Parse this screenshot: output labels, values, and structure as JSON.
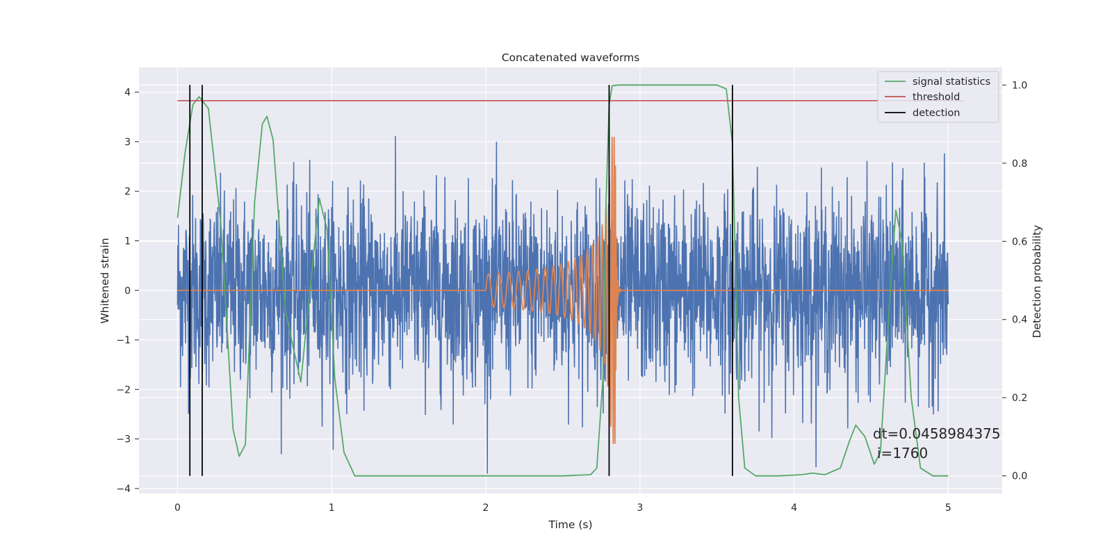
{
  "chart_data": {
    "type": "line",
    "title": "Concatenated waveforms",
    "xlabel": "Time (s)",
    "ylabel": "Whitened strain",
    "y2label": "Detection probability",
    "xlim": [
      -0.25,
      5.35
    ],
    "ylim": [
      -4.1,
      4.5
    ],
    "y2lim": [
      -0.045,
      1.045
    ],
    "xticks": [
      "0",
      "1",
      "2",
      "3",
      "4",
      "5"
    ],
    "xtick_values": [
      0,
      1,
      2,
      3,
      4,
      5
    ],
    "yticks": [
      "4",
      "3",
      "2",
      "1",
      "0",
      "−1",
      "−2",
      "−3",
      "−4"
    ],
    "ytick_values": [
      4,
      3,
      2,
      1,
      0,
      -1,
      -2,
      -3,
      -4
    ],
    "y2ticks": [
      "1.0",
      "0.8",
      "0.6",
      "0.4",
      "0.2",
      "0.0"
    ],
    "y2tick_values": [
      1.0,
      0.8,
      0.6,
      0.4,
      0.2,
      0.0
    ],
    "grid": true,
    "legend_position": "top-right",
    "colors": {
      "noise": "#4c72b0",
      "signal": "#dd8452",
      "statistics": "#55a868",
      "threshold": "#c44e52",
      "detection": "#000000",
      "background": "#eaeaf2"
    },
    "legend": [
      "signal statistics",
      "threshold",
      "detection"
    ],
    "series": [
      {
        "role": "noise",
        "x_range": [
          0,
          5
        ],
        "amplitude_range": [
          -3.7,
          3.2
        ]
      },
      {
        "role": "signal",
        "x_range": [
          2.0,
          2.9
        ],
        "peak_time": 2.84
      },
      {
        "name": "signal statistics",
        "axis": "right",
        "x": [
          0,
          0.05,
          0.1,
          0.14,
          0.2,
          0.28,
          0.36,
          0.4,
          0.44,
          0.5,
          0.55,
          0.58,
          0.62,
          0.7,
          0.8,
          0.86,
          0.92,
          0.97,
          1.02,
          1.08,
          1.15,
          1.3,
          2.0,
          2.5,
          2.68,
          2.72,
          2.76,
          2.78,
          2.8,
          2.82,
          2.86,
          3.0,
          3.5,
          3.56,
          3.6,
          3.64,
          3.68,
          3.75,
          3.9,
          4.05,
          4.12,
          4.2,
          4.3,
          4.36,
          4.4,
          4.46,
          4.52,
          4.56,
          4.62,
          4.66,
          4.7,
          4.76,
          4.82,
          4.9,
          5.0
        ],
        "values": [
          0.66,
          0.83,
          0.95,
          0.97,
          0.94,
          0.65,
          0.12,
          0.05,
          0.08,
          0.7,
          0.9,
          0.92,
          0.86,
          0.42,
          0.24,
          0.48,
          0.71,
          0.63,
          0.25,
          0.06,
          0.0,
          0.0,
          0.0,
          0.0,
          0.003,
          0.02,
          0.25,
          0.7,
          0.95,
          0.998,
          1.0,
          1.0,
          1.0,
          0.99,
          0.85,
          0.2,
          0.02,
          0.0,
          0.0,
          0.003,
          0.007,
          0.003,
          0.02,
          0.09,
          0.13,
          0.1,
          0.03,
          0.06,
          0.45,
          0.68,
          0.6,
          0.2,
          0.02,
          0.0,
          0.0
        ]
      },
      {
        "name": "threshold",
        "axis": "right",
        "x": [
          0,
          5.1
        ],
        "values": [
          0.96,
          0.96
        ]
      },
      {
        "name": "detection",
        "axis": "right",
        "x": [
          0.08,
          0.16,
          2.8,
          3.6
        ],
        "y_range": [
          0.0,
          1.0
        ]
      }
    ],
    "annotations": [
      "dt=0.0458984375",
      "i=1760"
    ]
  }
}
